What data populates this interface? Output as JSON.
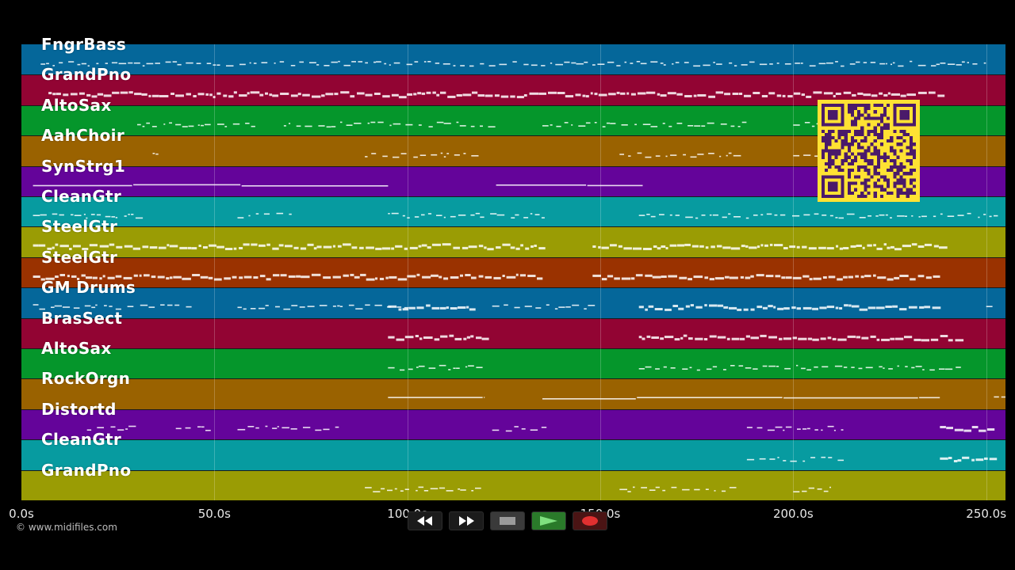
{
  "tracks": [
    {
      "name": "FngrBass",
      "color": "#05679a"
    },
    {
      "name": "GrandPno",
      "color": "#920433"
    },
    {
      "name": "AltoSax",
      "color": "#05962b"
    },
    {
      "name": "AahChoir",
      "color": "#9a6200"
    },
    {
      "name": "SynStrg1",
      "color": "#64049a"
    },
    {
      "name": "CleanGtr",
      "color": "#079ba0"
    },
    {
      "name": "SteelGtr",
      "color": "#9a9c04"
    },
    {
      "name": "SteelGtr",
      "color": "#9a3200"
    },
    {
      "name": "GM Drums",
      "color": "#05679a"
    },
    {
      "name": "BrasSect",
      "color": "#920433"
    },
    {
      "name": "AltoSax",
      "color": "#05962b"
    },
    {
      "name": "RockOrgn",
      "color": "#9a6200"
    },
    {
      "name": "Distortd",
      "color": "#64049a"
    },
    {
      "name": "CleanGtr",
      "color": "#079ba0"
    },
    {
      "name": "GrandPno",
      "color": "#9a9c04"
    }
  ],
  "timeline": {
    "ticks": [
      "0.0s",
      "50.0s",
      "100.0s",
      "150.0s",
      "200.0s",
      "250.0s"
    ],
    "tick_seconds": [
      0,
      50,
      100,
      150,
      200,
      250
    ],
    "max_seconds": 255
  },
  "copyright": "© www.midifiles.com",
  "transport": {
    "rewind_icon": "rewind-icon",
    "fast_forward_icon": "fast-forward-icon",
    "stop_icon": "stop-icon",
    "play_icon": "play-icon",
    "record_icon": "record-icon"
  },
  "qr_code": {
    "color": "#ffe233",
    "module_color": "#4a1a6a"
  }
}
